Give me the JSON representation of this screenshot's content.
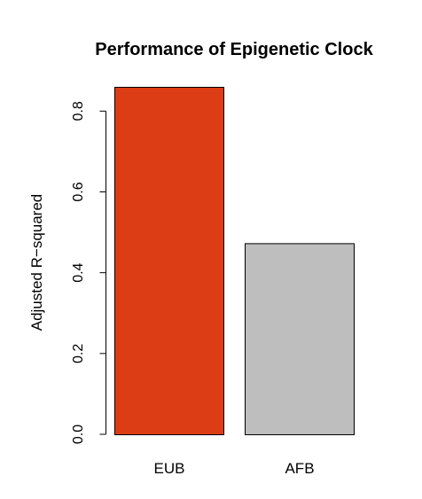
{
  "chart_data": {
    "type": "bar",
    "title": "Performance of Epigenetic Clock",
    "xlabel": "",
    "ylabel": "Adjusted R−squared",
    "categories": [
      "EUB",
      "AFB"
    ],
    "values": [
      0.86,
      0.473
    ],
    "ylim": [
      0,
      0.86
    ],
    "yticks": [
      0.0,
      0.2,
      0.4,
      0.6,
      0.8
    ],
    "ytick_labels": [
      "0.0",
      "0.2",
      "0.4",
      "0.6",
      "0.8"
    ],
    "bar_colors": [
      "#dc3d14",
      "#bebebe"
    ],
    "grid": false,
    "legend": "none"
  }
}
